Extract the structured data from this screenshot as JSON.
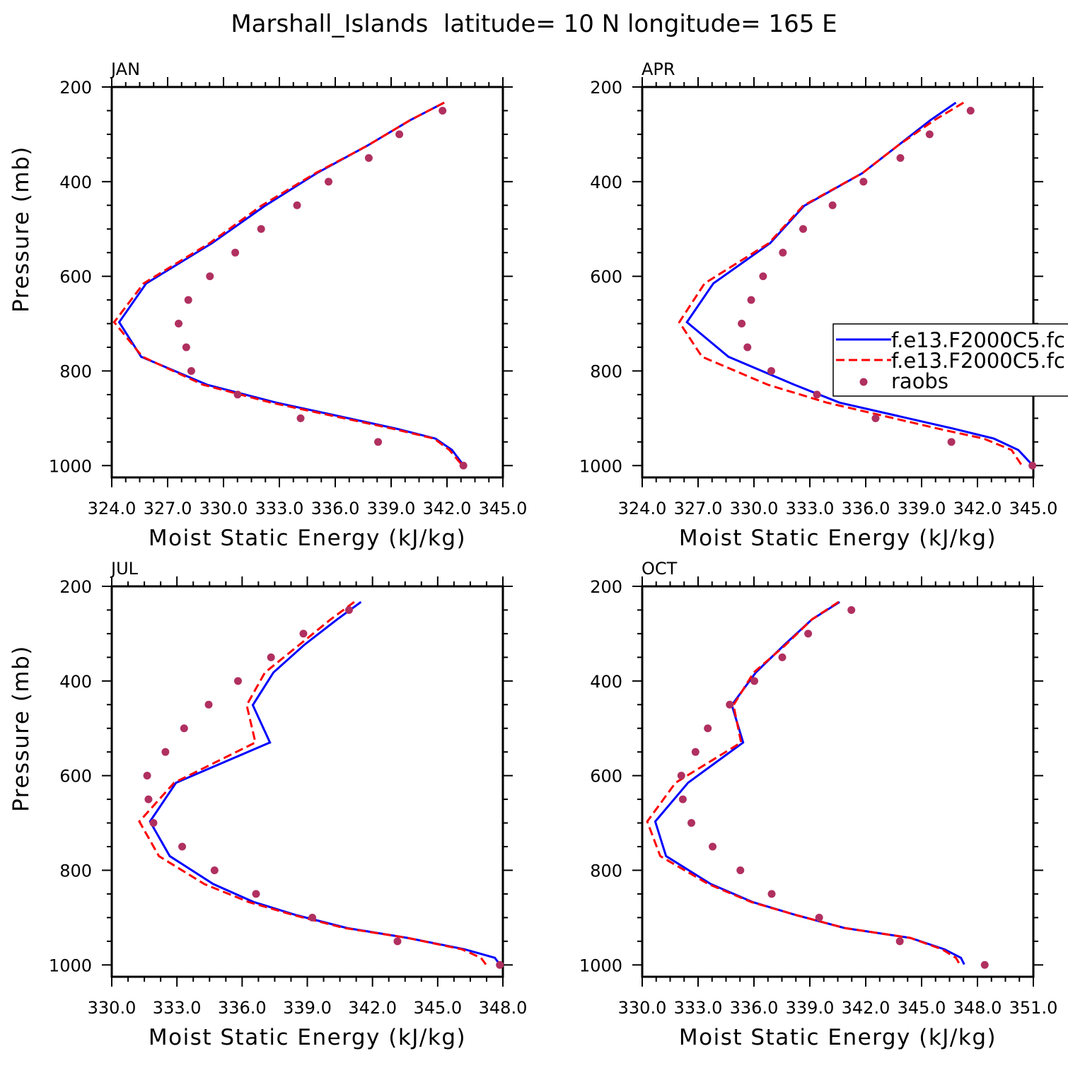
{
  "title": "Marshall_Islands  latitude= 10 N longitude= 165 E",
  "colors": {
    "model1": "#0000ff",
    "model2": "#ff0000",
    "raobs": "#b03060"
  },
  "legend": {
    "entries": [
      {
        "label": "f.e13.F2000C5.fc",
        "style": "solid",
        "color": "#0000ff"
      },
      {
        "label": "f.e13.F2000C5.fc",
        "style": "dashed",
        "color": "#ff0000"
      },
      {
        "label": "raobs",
        "style": "dot",
        "color": "#b03060"
      }
    ],
    "placement": "right-middle of APR panel (clipped by page edge)"
  },
  "chart_data": [
    {
      "type": "line",
      "panel": "JAN",
      "title": "JAN",
      "xlabel": "Moist Static Energy (kJ/kg)",
      "ylabel": "Pressure (mb)",
      "xlim": [
        324,
        345
      ],
      "ylim": [
        1025,
        200
      ],
      "xticks": [
        324,
        327,
        330,
        333,
        336,
        339,
        342,
        345
      ],
      "xtick_labels": [
        "324.0",
        "327.0",
        "330.0",
        "333.0",
        "336.0",
        "339.0",
        "342.0",
        "345.0"
      ],
      "yticks": [
        200,
        400,
        600,
        800,
        1000
      ],
      "ytick_labels": [
        "200",
        "400",
        "600",
        "800",
        "1000"
      ],
      "model_pressure": [
        233,
        270,
        324,
        382,
        451,
        530,
        615,
        697,
        770,
        829,
        867,
        895,
        922,
        943,
        967,
        985,
        999
      ],
      "series": [
        {
          "name": "f.e13.F2000C5.fc (solid)",
          "values": [
            341.85,
            340.03,
            337.72,
            335.01,
            332.23,
            329.38,
            325.85,
            324.4,
            325.58,
            329.11,
            332.84,
            336.12,
            339.28,
            341.38,
            342.27,
            342.61,
            342.88
          ]
        },
        {
          "name": "f.e13.F2000C5.fc (dashed)",
          "values": [
            341.85,
            340.03,
            337.72,
            334.94,
            332.03,
            329.25,
            325.71,
            324.13,
            325.65,
            328.9,
            332.56,
            335.88,
            339.08,
            341.31,
            342.13,
            342.51,
            342.81
          ]
        }
      ],
      "raobs_pressure": [
        250,
        300,
        350,
        400,
        450,
        500,
        550,
        600,
        650,
        700,
        750,
        800,
        850,
        900,
        950,
        1000
      ],
      "raobs": [
        341.76,
        339.44,
        337.8,
        335.64,
        333.95,
        332.02,
        330.63,
        329.27,
        328.11,
        327.59,
        328.0,
        328.27,
        330.76,
        334.14,
        338.3,
        342.88
      ]
    },
    {
      "type": "line",
      "panel": "APR",
      "title": "APR",
      "xlabel": "Moist Static Energy (kJ/kg)",
      "ylabel": "",
      "xlim": [
        324,
        345
      ],
      "ylim": [
        1025,
        200
      ],
      "xticks": [
        324,
        327,
        330,
        333,
        336,
        339,
        342,
        345
      ],
      "xtick_labels": [
        "324.0",
        "327.0",
        "330.0",
        "333.0",
        "336.0",
        "339.0",
        "342.0",
        "345.0"
      ],
      "yticks": [
        200,
        400,
        600,
        800,
        1000
      ],
      "ytick_labels": [
        "200",
        "400",
        "600",
        "800",
        "1000"
      ],
      "model_pressure": [
        233,
        270,
        324,
        382,
        451,
        530,
        615,
        697,
        770,
        829,
        867,
        895,
        922,
        943,
        967,
        985,
        999
      ],
      "series": [
        {
          "name": "f.e13.F2000C5.fc (solid)",
          "values": [
            340.84,
            339.48,
            337.72,
            335.82,
            332.7,
            330.87,
            327.82,
            326.4,
            328.63,
            332.16,
            334.6,
            337.71,
            340.71,
            342.88,
            344.19,
            344.62,
            344.95
          ]
        },
        {
          "name": "f.e13.F2000C5.fc (dashed)",
          "values": [
            341.25,
            339.69,
            337.72,
            335.82,
            332.64,
            330.8,
            327.35,
            325.99,
            327.21,
            330.74,
            333.92,
            336.96,
            339.89,
            342.33,
            343.83,
            344.13,
            344.37
          ]
        }
      ],
      "raobs_pressure": [
        250,
        300,
        350,
        400,
        450,
        500,
        550,
        600,
        650,
        700,
        750,
        800,
        850,
        900,
        950,
        1000
      ],
      "raobs": [
        341.63,
        339.43,
        337.86,
        335.88,
        334.22,
        332.64,
        331.55,
        330.49,
        329.85,
        329.34,
        329.65,
        330.93,
        333.38,
        336.53,
        340.6,
        344.95
      ]
    },
    {
      "type": "line",
      "panel": "JUL",
      "title": "JUL",
      "xlabel": "Moist Static Energy (kJ/kg)",
      "ylabel": "Pressure (mb)",
      "xlim": [
        330,
        348
      ],
      "ylim": [
        1025,
        200
      ],
      "xticks": [
        330,
        333,
        336,
        339,
        342,
        345,
        348
      ],
      "xtick_labels": [
        "330.0",
        "333.0",
        "336.0",
        "339.0",
        "342.0",
        "345.0",
        "348.0"
      ],
      "yticks": [
        200,
        400,
        600,
        800,
        1000
      ],
      "ytick_labels": [
        "200",
        "400",
        "600",
        "800",
        "1000"
      ],
      "model_pressure": [
        233,
        270,
        324,
        382,
        451,
        530,
        615,
        697,
        770,
        829,
        867,
        895,
        922,
        943,
        967,
        985,
        999
      ],
      "series": [
        {
          "name": "f.e13.F2000C5.fc (solid)",
          "values": [
            341.47,
            340.37,
            338.85,
            337.44,
            336.49,
            337.28,
            332.96,
            331.76,
            332.67,
            334.67,
            336.53,
            338.51,
            340.83,
            343.62,
            346.24,
            347.63,
            347.86
          ]
        },
        {
          "name": "f.e13.F2000C5.fc (dashed)",
          "values": [
            341.16,
            340.07,
            338.62,
            337.05,
            336.21,
            336.61,
            332.87,
            331.27,
            332.17,
            334.26,
            336.3,
            338.39,
            340.71,
            343.62,
            346.12,
            346.99,
            347.22
          ]
        }
      ],
      "raobs_pressure": [
        250,
        300,
        350,
        400,
        450,
        500,
        550,
        600,
        650,
        700,
        750,
        800,
        850,
        900,
        950,
        1000
      ],
      "raobs": [
        340.92,
        338.82,
        337.33,
        335.81,
        334.46,
        333.33,
        332.47,
        331.63,
        331.69,
        331.92,
        333.24,
        334.73,
        336.64,
        339.23,
        343.15,
        347.86
      ]
    },
    {
      "type": "line",
      "panel": "OCT",
      "title": "OCT",
      "xlabel": "Moist Static Energy (kJ/kg)",
      "ylabel": "",
      "xlim": [
        330,
        351
      ],
      "ylim": [
        1025,
        200
      ],
      "xticks": [
        330,
        333,
        336,
        339,
        342,
        345,
        348,
        351
      ],
      "xtick_labels": [
        "330.0",
        "333.0",
        "336.0",
        "339.0",
        "342.0",
        "345.0",
        "348.0",
        "351.0"
      ],
      "yticks": [
        200,
        400,
        600,
        800,
        1000
      ],
      "ytick_labels": [
        "200",
        "400",
        "600",
        "800",
        "1000"
      ],
      "model_pressure": [
        233,
        270,
        324,
        382,
        451,
        530,
        615,
        697,
        770,
        829,
        867,
        895,
        922,
        943,
        967,
        985,
        999
      ],
      "series": [
        {
          "name": "f.e13.F2000C5.fc (solid)",
          "values": [
            340.6,
            339.11,
            337.62,
            336.1,
            334.81,
            335.42,
            332.46,
            330.7,
            331.28,
            333.68,
            335.92,
            338.29,
            340.87,
            344.4,
            346.23,
            347.11,
            347.29
          ]
        },
        {
          "name": "f.e13.F2000C5.fc (dashed)",
          "values": [
            340.54,
            339.11,
            337.69,
            335.99,
            334.9,
            335.31,
            331.79,
            330.27,
            330.97,
            333.55,
            335.85,
            338.29,
            340.87,
            344.4,
            346.1,
            346.84,
            347.05
          ]
        }
      ],
      "raobs_pressure": [
        250,
        300,
        350,
        400,
        450,
        500,
        550,
        600,
        650,
        700,
        750,
        800,
        850,
        900,
        950,
        1000
      ],
      "raobs": [
        341.23,
        338.91,
        337.52,
        336.02,
        334.7,
        333.52,
        332.86,
        332.1,
        332.18,
        332.64,
        333.78,
        335.27,
        336.95,
        339.5,
        343.83,
        348.39
      ]
    }
  ]
}
